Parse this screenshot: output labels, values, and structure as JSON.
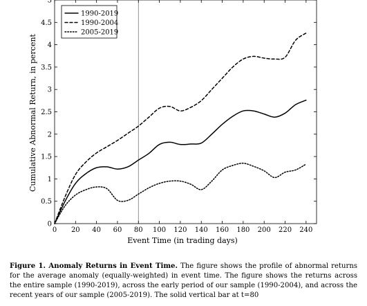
{
  "chart_data": {
    "type": "line",
    "title": "",
    "xlabel": "Event Time (in trading days)",
    "ylabel": "Cumulative Abnormal Return, in percent",
    "xlim": [
      0,
      250
    ],
    "ylim": [
      0,
      5
    ],
    "xticks": [
      "0",
      "20",
      "40",
      "60",
      "80",
      "100",
      "120",
      "140",
      "160",
      "180",
      "200",
      "220",
      "240"
    ],
    "yticks": [
      "0",
      "0.5",
      "1",
      "1.5",
      "2",
      "2.5",
      "3",
      "3.5",
      "4",
      "4.5",
      "5"
    ],
    "grid": false,
    "legend": "top-left",
    "vline": 80,
    "series": [
      {
        "name": "1990-2019",
        "style": "solid",
        "x": [
          0,
          10,
          20,
          30,
          40,
          50,
          60,
          70,
          80,
          90,
          100,
          110,
          120,
          130,
          140,
          150,
          160,
          170,
          180,
          190,
          200,
          210,
          220,
          230,
          240
        ],
        "y": [
          0,
          0.5,
          0.9,
          1.12,
          1.25,
          1.27,
          1.22,
          1.27,
          1.42,
          1.57,
          1.77,
          1.82,
          1.77,
          1.78,
          1.8,
          2.0,
          2.22,
          2.4,
          2.52,
          2.52,
          2.45,
          2.38,
          2.47,
          2.66,
          2.76
        ]
      },
      {
        "name": "1990-2004",
        "style": "dashed",
        "x": [
          0,
          10,
          20,
          30,
          40,
          50,
          60,
          70,
          80,
          90,
          100,
          110,
          120,
          130,
          140,
          150,
          160,
          170,
          180,
          190,
          200,
          210,
          220,
          230,
          240
        ],
        "y": [
          0,
          0.6,
          1.1,
          1.38,
          1.58,
          1.72,
          1.86,
          2.02,
          2.18,
          2.38,
          2.58,
          2.62,
          2.52,
          2.6,
          2.75,
          3.0,
          3.25,
          3.5,
          3.68,
          3.74,
          3.7,
          3.68,
          3.72,
          4.1,
          4.26
        ]
      },
      {
        "name": "2005-2019",
        "style": "dotted",
        "x": [
          0,
          10,
          20,
          30,
          40,
          50,
          60,
          70,
          80,
          90,
          100,
          110,
          120,
          130,
          140,
          150,
          160,
          170,
          180,
          190,
          200,
          210,
          220,
          230,
          240
        ],
        "y": [
          0,
          0.4,
          0.64,
          0.76,
          0.82,
          0.78,
          0.52,
          0.52,
          0.66,
          0.8,
          0.9,
          0.95,
          0.95,
          0.88,
          0.76,
          0.95,
          1.2,
          1.3,
          1.35,
          1.28,
          1.18,
          1.03,
          1.15,
          1.2,
          1.33
        ]
      }
    ]
  },
  "caption": {
    "label": "Figure 1. Anomaly Returns in Event Time.",
    "text": " The figure shows the profile of abnormal returns for the average anomaly (equally-weighted) in event time. The figure shows the returns across the entire sample (1990-2019), across the early period of our sample (1990-2004), and across the recent years of our sample (2005-2019). The solid vertical bar at t=80"
  }
}
